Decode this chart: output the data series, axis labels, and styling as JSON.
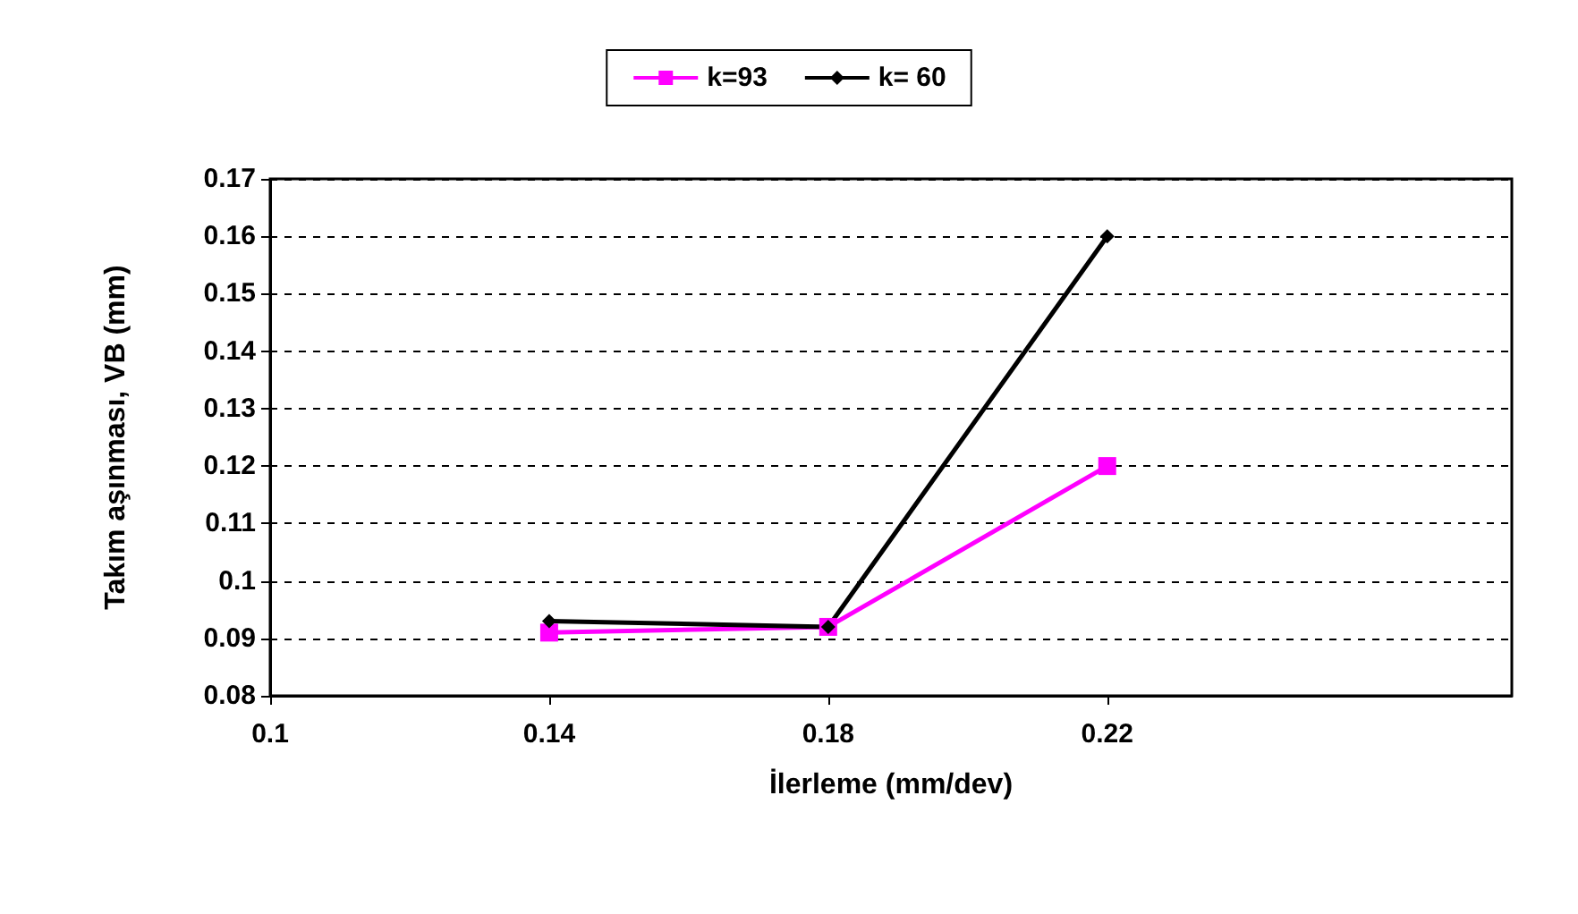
{
  "chart_data": {
    "type": "line",
    "xlabel": "İlerleme (mm/dev)",
    "ylabel": "Takım aşınması, VB (mm)",
    "x": [
      0.14,
      0.18,
      0.22
    ],
    "series": [
      {
        "name": "k=93",
        "color": "#ff00ff",
        "values": [
          0.091,
          0.092,
          0.12
        ],
        "marker": "square"
      },
      {
        "name": "k= 60",
        "color": "#000000",
        "values": [
          0.093,
          0.092,
          0.16
        ],
        "marker": "diamond"
      }
    ],
    "xlim": [
      0.1,
      0.278
    ],
    "xticks": [
      0.1,
      0.14,
      0.18,
      0.22
    ],
    "ylim": [
      0.08,
      0.17
    ],
    "yticks": [
      0.08,
      0.09,
      0.1,
      0.11,
      0.12,
      0.13,
      0.14,
      0.15,
      0.16,
      0.17
    ],
    "grid": "y",
    "legend": "top",
    "line_style": "solid"
  }
}
